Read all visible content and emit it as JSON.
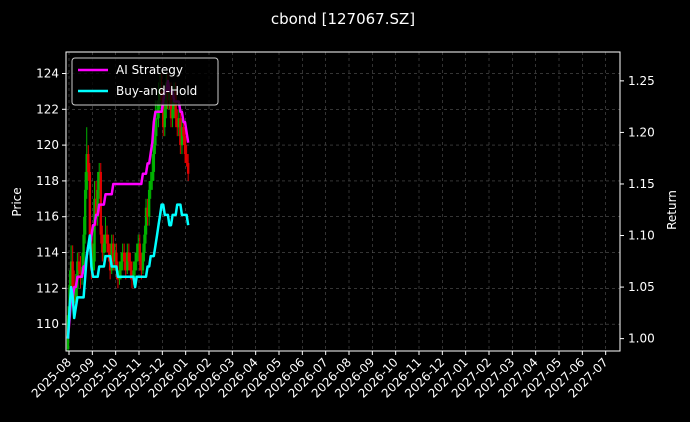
{
  "chart_data": {
    "type": "line",
    "title": "cbond [127067.SZ]",
    "ylabel": "Price",
    "y2label": "Return",
    "price_ylim": [
      108.5,
      125.2
    ],
    "return_ylim": [
      0.988,
      1.278
    ],
    "price_ticks": [
      110,
      112,
      114,
      116,
      118,
      120,
      122,
      124
    ],
    "return_ticks": [
      "1.00",
      "1.05",
      "1.10",
      "1.15",
      "1.20",
      "1.25"
    ],
    "x_ticks": [
      "2025-08",
      "2025-09",
      "2025-10",
      "2025-11",
      "2025-12",
      "2026-01",
      "2026-02",
      "2026-03",
      "2026-04",
      "2026-05",
      "2026-06",
      "2026-07",
      "2026-08",
      "2026-09",
      "2026-10",
      "2026-11",
      "2026-12",
      "2027-01",
      "2027-02",
      "2027-03",
      "2027-04",
      "2027-05",
      "2027-06",
      "2027-07"
    ],
    "grid": true,
    "legend_position": "top-left",
    "colors": {
      "up": "#00b300",
      "down": "#e00000",
      "ai": "#ff00ff",
      "bh": "#00ffff",
      "grid": "#555555",
      "axes": "#ffffff"
    },
    "series": [
      {
        "name": "AI Strategy",
        "color": "#ff00ff",
        "x": [
          0,
          2,
          4,
          6,
          8,
          10,
          12,
          14,
          16,
          18,
          20,
          22,
          24,
          26,
          28,
          30,
          32,
          34,
          36,
          38,
          40,
          42,
          44,
          46,
          48,
          50,
          52,
          54,
          56,
          58,
          60,
          62,
          64,
          66,
          68,
          70,
          72,
          74,
          76,
          78,
          80,
          82,
          84,
          86,
          88,
          90,
          92,
          94,
          96,
          98,
          100,
          102,
          104,
          106,
          108,
          110,
          112,
          114,
          116,
          118,
          120,
          122,
          124,
          126,
          128,
          130,
          132,
          134,
          136,
          138,
          140,
          142,
          144,
          146,
          148,
          150,
          152,
          154
        ],
        "values": [
          1.0,
          1.02,
          1.04,
          1.04,
          1.05,
          1.05,
          1.06,
          1.06,
          1.06,
          1.06,
          1.07,
          1.07,
          1.08,
          1.09,
          1.09,
          1.1,
          1.11,
          1.11,
          1.12,
          1.12,
          1.13,
          1.13,
          1.13,
          1.13,
          1.14,
          1.14,
          1.14,
          1.14,
          1.14,
          1.15,
          1.15,
          1.15,
          1.15,
          1.15,
          1.15,
          1.15,
          1.15,
          1.15,
          1.15,
          1.15,
          1.15,
          1.15,
          1.15,
          1.15,
          1.15,
          1.15,
          1.15,
          1.15,
          1.16,
          1.16,
          1.16,
          1.17,
          1.17,
          1.18,
          1.19,
          1.21,
          1.22,
          1.22,
          1.22,
          1.22,
          1.22,
          1.23,
          1.24,
          1.24,
          1.25,
          1.24,
          1.24,
          1.24,
          1.23,
          1.23,
          1.23,
          1.23,
          1.22,
          1.22,
          1.21,
          1.21,
          1.2,
          1.19
        ]
      },
      {
        "name": "Buy-and-Hold",
        "color": "#00ffff",
        "x": [
          0,
          2,
          4,
          6,
          8,
          10,
          12,
          14,
          16,
          18,
          20,
          22,
          24,
          26,
          28,
          30,
          32,
          34,
          36,
          38,
          40,
          42,
          44,
          46,
          48,
          50,
          52,
          54,
          56,
          58,
          60,
          62,
          64,
          66,
          68,
          70,
          72,
          74,
          76,
          78,
          80,
          82,
          84,
          86,
          88,
          90,
          92,
          94,
          96,
          98,
          100,
          102,
          104,
          106,
          108,
          110,
          112,
          114,
          116,
          118,
          120,
          122,
          124,
          126,
          128,
          130,
          132,
          134,
          136,
          138,
          140,
          142,
          144,
          146,
          148,
          150,
          152,
          154
        ],
        "values": [
          1.0,
          1.03,
          1.05,
          1.04,
          1.02,
          1.03,
          1.04,
          1.04,
          1.04,
          1.04,
          1.04,
          1.06,
          1.08,
          1.09,
          1.1,
          1.07,
          1.06,
          1.06,
          1.06,
          1.06,
          1.07,
          1.07,
          1.07,
          1.07,
          1.08,
          1.08,
          1.08,
          1.08,
          1.07,
          1.07,
          1.07,
          1.07,
          1.06,
          1.06,
          1.06,
          1.06,
          1.06,
          1.06,
          1.06,
          1.06,
          1.06,
          1.06,
          1.06,
          1.05,
          1.06,
          1.06,
          1.06,
          1.06,
          1.06,
          1.06,
          1.06,
          1.07,
          1.07,
          1.08,
          1.08,
          1.08,
          1.09,
          1.1,
          1.11,
          1.12,
          1.13,
          1.13,
          1.12,
          1.12,
          1.12,
          1.11,
          1.11,
          1.12,
          1.12,
          1.12,
          1.13,
          1.13,
          1.13,
          1.12,
          1.12,
          1.12,
          1.12,
          1.11
        ]
      }
    ],
    "candles": {
      "x": [
        0,
        2,
        4,
        6,
        8,
        10,
        12,
        14,
        16,
        18,
        20,
        22,
        24,
        26,
        28,
        30,
        32,
        34,
        36,
        38,
        40,
        42,
        44,
        46,
        48,
        50,
        52,
        54,
        56,
        58,
        60,
        62,
        64,
        66,
        68,
        70,
        72,
        74,
        76,
        78,
        80,
        82,
        84,
        86,
        88,
        90,
        92,
        94,
        96,
        98,
        100,
        102,
        104,
        106,
        108,
        110,
        112,
        114,
        116,
        118,
        120,
        122,
        124,
        126,
        128,
        130,
        132,
        134,
        136,
        138,
        140,
        142,
        144,
        146,
        148,
        150,
        152,
        154
      ],
      "open": [
        108.6,
        110.5,
        112.2,
        113.5,
        112.0,
        111.2,
        112.0,
        113.5,
        113.0,
        112.8,
        113.2,
        115.0,
        117.5,
        119.5,
        118.5,
        115.0,
        113.0,
        113.5,
        117.0,
        116.0,
        117.5,
        118.5,
        115.0,
        114.0,
        114.5,
        115.0,
        114.5,
        114.0,
        113.0,
        114.5,
        113.5,
        114.0,
        113.0,
        112.5,
        113.0,
        113.5,
        114.0,
        113.5,
        113.0,
        114.0,
        113.5,
        113.0,
        112.5,
        113.0,
        113.5,
        114.0,
        114.5,
        113.5,
        113.0,
        114.0,
        115.0,
        116.5,
        116.0,
        117.5,
        118.0,
        118.5,
        120.0,
        121.5,
        121.5,
        122.5,
        123.0,
        122.5,
        121.0,
        122.0,
        123.5,
        122.5,
        123.0,
        121.5,
        122.0,
        123.0,
        121.5,
        121.0,
        121.5,
        120.0,
        121.0,
        120.5,
        119.5,
        119.0
      ],
      "close": [
        110.5,
        112.2,
        113.5,
        112.0,
        111.2,
        112.0,
        113.5,
        113.0,
        112.8,
        113.2,
        115.0,
        117.5,
        119.5,
        118.5,
        115.0,
        113.0,
        113.5,
        117.0,
        116.0,
        117.5,
        118.5,
        115.0,
        114.0,
        114.5,
        115.0,
        114.5,
        114.0,
        113.0,
        114.5,
        113.5,
        114.0,
        113.0,
        112.5,
        113.0,
        113.5,
        114.0,
        113.5,
        113.0,
        114.0,
        113.5,
        113.0,
        112.5,
        113.0,
        113.5,
        114.0,
        114.5,
        113.5,
        113.0,
        114.0,
        115.0,
        116.5,
        116.0,
        117.5,
        118.0,
        118.5,
        120.0,
        121.5,
        121.5,
        122.5,
        123.0,
        122.5,
        121.0,
        122.0,
        123.5,
        122.5,
        123.0,
        121.5,
        122.0,
        123.0,
        121.5,
        121.0,
        121.5,
        120.0,
        121.0,
        120.5,
        119.5,
        119.0,
        118.4
      ],
      "high": [
        111.0,
        113.0,
        114.4,
        114.4,
        113.0,
        112.8,
        114.0,
        114.0,
        113.8,
        114.0,
        116.0,
        118.5,
        121.0,
        120.0,
        119.0,
        114.5,
        114.5,
        118.0,
        118.0,
        118.5,
        119.0,
        119.0,
        115.5,
        115.0,
        116.0,
        115.5,
        115.0,
        114.5,
        115.0,
        115.0,
        114.5,
        114.5,
        113.5,
        113.5,
        114.0,
        114.5,
        114.5,
        114.0,
        114.5,
        114.5,
        114.0,
        113.5,
        113.5,
        114.0,
        114.5,
        115.0,
        115.0,
        114.0,
        114.5,
        115.5,
        117.0,
        117.0,
        118.0,
        118.5,
        119.5,
        120.5,
        122.5,
        122.5,
        123.5,
        124.0,
        124.0,
        123.0,
        122.5,
        124.0,
        124.0,
        123.5,
        123.5,
        122.5,
        123.5,
        123.5,
        122.0,
        122.0,
        122.0,
        121.5,
        121.5,
        121.0,
        120.0,
        119.5
      ],
      "low": [
        108.5,
        110.0,
        111.5,
        111.5,
        110.5,
        110.8,
        111.5,
        112.5,
        112.0,
        112.2,
        112.8,
        114.5,
        117.0,
        118.0,
        114.5,
        112.5,
        112.8,
        113.0,
        115.5,
        115.5,
        117.0,
        114.5,
        113.5,
        113.5,
        114.0,
        114.0,
        113.5,
        112.5,
        112.8,
        113.0,
        113.0,
        112.5,
        112.0,
        112.2,
        112.5,
        113.0,
        113.0,
        112.5,
        112.8,
        113.0,
        112.5,
        112.0,
        112.2,
        112.5,
        113.0,
        113.5,
        113.0,
        112.5,
        112.8,
        113.5,
        114.5,
        115.5,
        115.5,
        117.0,
        117.5,
        118.0,
        119.5,
        120.5,
        121.0,
        122.0,
        122.0,
        120.5,
        120.5,
        121.5,
        122.0,
        122.0,
        121.0,
        121.0,
        121.5,
        121.0,
        120.5,
        120.5,
        119.5,
        119.5,
        120.0,
        119.0,
        118.8,
        118.0
      ]
    }
  }
}
